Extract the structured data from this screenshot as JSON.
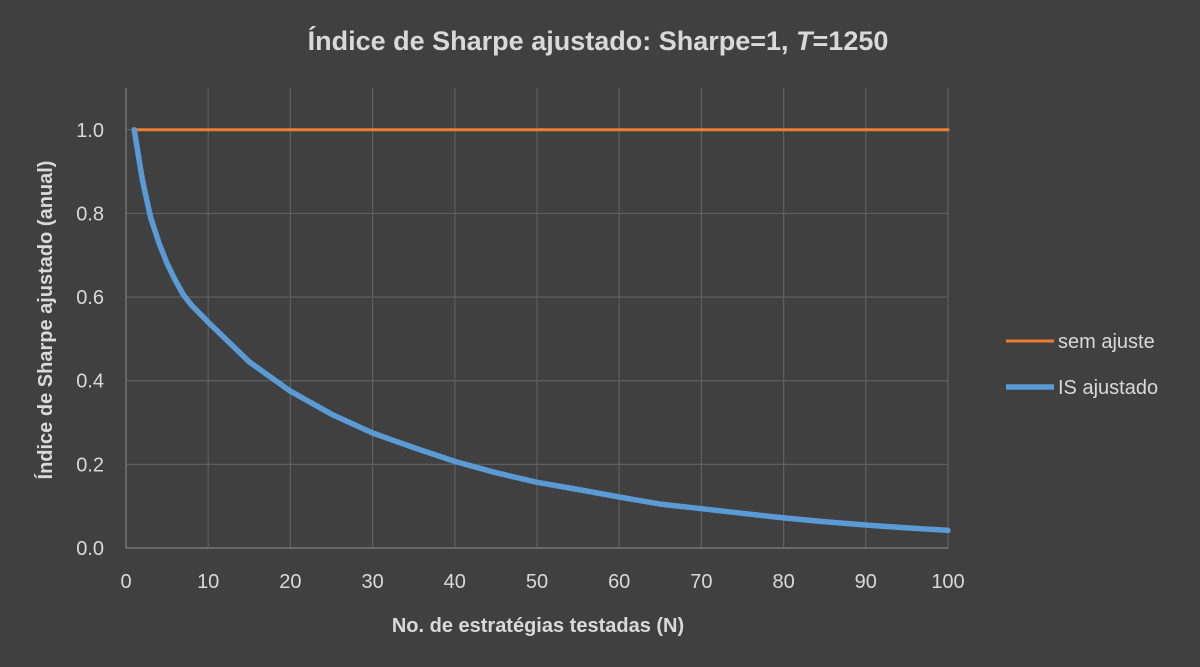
{
  "chart_data": {
    "type": "line",
    "title_main": "Índice de Sharpe ajustado:  Sharpe=1, ",
    "title_var": "T",
    "title_rest": "=1250",
    "xlabel": "No. de estratégias testadas (N)",
    "ylabel": "Índice de Sharpe ajustado (anual)",
    "xlim": [
      0,
      100
    ],
    "ylim": [
      0,
      1.1
    ],
    "x_ticks": [
      0,
      10,
      20,
      30,
      40,
      50,
      60,
      70,
      80,
      90,
      100
    ],
    "x_tick_labels": [
      "0",
      "10",
      "20",
      "30",
      "40",
      "50",
      "60",
      "70",
      "80",
      "90",
      "100"
    ],
    "y_ticks": [
      0,
      0.2,
      0.4,
      0.6,
      0.8,
      1.0
    ],
    "y_tick_labels": [
      "0.0",
      "0.2",
      "0.4",
      "0.6",
      "0.8",
      "1.0"
    ],
    "grid": true,
    "legend_position": "right",
    "series": [
      {
        "name": "sem ajuste",
        "color": "#ed7d31",
        "x": [
          1,
          100
        ],
        "y": [
          1.0,
          1.0
        ]
      },
      {
        "name": "IS ajustado",
        "color": "#5b9bd5",
        "x": [
          1,
          2,
          3,
          4,
          5,
          6,
          7,
          8,
          9,
          10,
          15,
          20,
          25,
          30,
          35,
          40,
          45,
          50,
          55,
          60,
          65,
          70,
          75,
          80,
          85,
          90,
          95,
          100
        ],
        "y": [
          1.0,
          0.88,
          0.79,
          0.73,
          0.68,
          0.64,
          0.605,
          0.58,
          0.56,
          0.54,
          0.445,
          0.375,
          0.32,
          0.275,
          0.24,
          0.207,
          0.18,
          0.157,
          0.14,
          0.122,
          0.105,
          0.094,
          0.083,
          0.072,
          0.063,
          0.055,
          0.048,
          0.042
        ]
      }
    ]
  }
}
